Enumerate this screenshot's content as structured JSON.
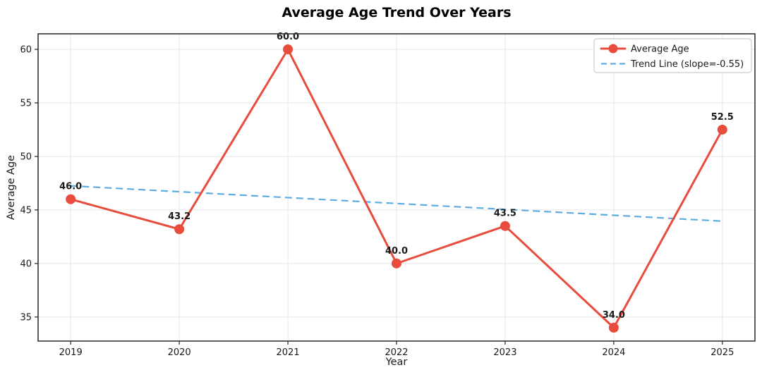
{
  "chart_data": {
    "type": "line",
    "title": "Average Age Trend Over Years",
    "xlabel": "Year",
    "ylabel": "Average Age",
    "x": [
      2019,
      2020,
      2021,
      2022,
      2023,
      2024,
      2025
    ],
    "xtick_labels": [
      "2019",
      "2020",
      "2021",
      "2022",
      "2023",
      "2024",
      "2025"
    ],
    "yticks": [
      35,
      40,
      45,
      50,
      55,
      60
    ],
    "xlim": [
      2018.7,
      2025.3
    ],
    "ylim": [
      32.75,
      61.45
    ],
    "grid": true,
    "legend_position": "upper right",
    "series": [
      {
        "name": "Average Age",
        "type": "line-markers",
        "color": "#e74c3c",
        "values": [
          46.0,
          43.2,
          60.0,
          40.0,
          43.5,
          34.0,
          52.5
        ],
        "point_labels": [
          "46.0",
          "43.2",
          "60.0",
          "40.0",
          "43.5",
          "34.0",
          "52.5"
        ]
      },
      {
        "name": "Trend Line (slope=-0.55)",
        "type": "dashed-trend",
        "color": "#5dade2",
        "slope": -0.55,
        "x_endpoints": [
          2019,
          2025
        ],
        "values": [
          47.25,
          43.95
        ]
      }
    ]
  },
  "colors": {
    "series_line": "#e74c3c",
    "trend_line": "#5dade2",
    "grid": "#e6e6e6",
    "spine": "#333333",
    "text": "#1a1a1a",
    "legend_border": "#cccccc",
    "background": "#ffffff"
  }
}
